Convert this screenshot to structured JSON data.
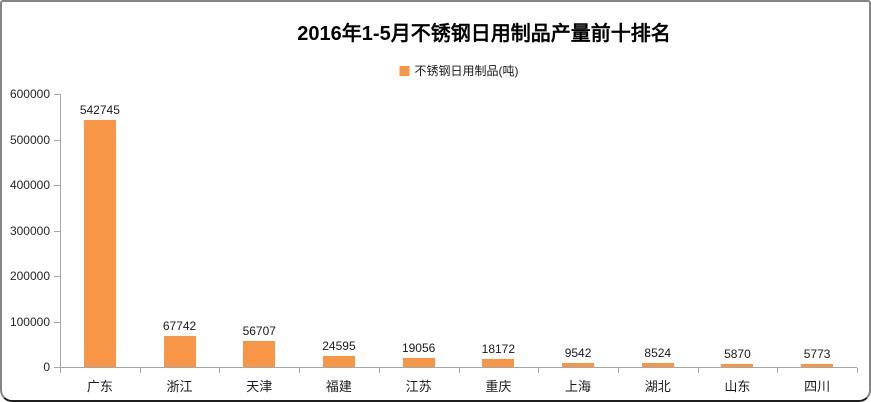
{
  "title": "2016年1-5月不锈钢日用制品产量前十排名",
  "legend": {
    "label": "不锈钢日用制品(吨)",
    "marker_color": "#F79646"
  },
  "chart_data": {
    "type": "bar",
    "title": "2016年1-5月不锈钢日用制品产量前十排名",
    "categories": [
      "广东",
      "浙江",
      "天津",
      "福建",
      "江苏",
      "重庆",
      "上海",
      "湖北",
      "山东",
      "四川"
    ],
    "series": [
      {
        "name": "不锈钢日用制品(吨)",
        "values": [
          542745,
          67742,
          56707,
          24595,
          19056,
          18172,
          9542,
          8524,
          5870,
          5773
        ]
      }
    ],
    "data_labels": [
      542745,
      67742,
      56707,
      24595,
      19056,
      18172,
      9542,
      8524,
      5870,
      5773
    ],
    "xlabel": "",
    "ylabel": "",
    "ylim": [
      0,
      600000
    ],
    "ytick_interval": 100000,
    "ytick_labels": [
      "0",
      "100000",
      "200000",
      "300000",
      "400000",
      "500000",
      "600000"
    ],
    "grid": false,
    "legend_position": "top-center",
    "bar_color": "#F79646",
    "axis_color": "#A6A6A6"
  }
}
